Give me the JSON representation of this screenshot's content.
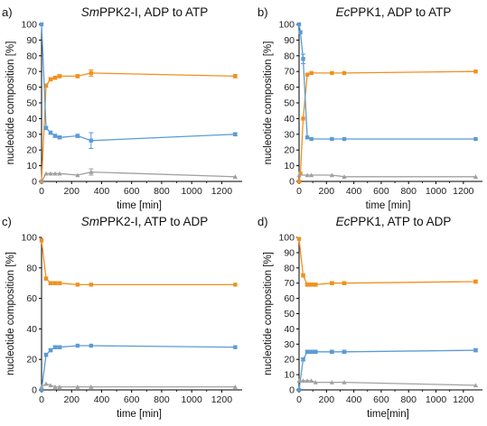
{
  "colors": {
    "orange": "#f0901e",
    "blue": "#5b9bd5",
    "gray": "#a0a0a0",
    "axis": "#000000"
  },
  "chart_data": [
    {
      "panel": "a)",
      "title_prefix": "",
      "title_italic": "Sm",
      "title_rest": "PPK2-I, ADP to ATP",
      "type": "line",
      "xlabel": "time [min]",
      "ylabel": "nucleotide composition [%]",
      "xlim": [
        0,
        1300
      ],
      "ylim": [
        0,
        100
      ],
      "xticks": [
        0,
        200,
        400,
        600,
        800,
        1000,
        1200
      ],
      "yticks": [
        0,
        10,
        20,
        30,
        40,
        50,
        60,
        70,
        80,
        90,
        100
      ],
      "series": [
        {
          "color": "orange",
          "x": [
            0,
            30,
            60,
            90,
            120,
            240,
            330,
            1290
          ],
          "y": [
            0,
            61,
            65,
            66,
            67,
            67,
            69,
            67
          ],
          "err": [
            0,
            1,
            1,
            1,
            1,
            1,
            2,
            1
          ]
        },
        {
          "color": "blue",
          "x": [
            0,
            30,
            60,
            90,
            120,
            240,
            330,
            1290
          ],
          "y": [
            100,
            34,
            31,
            29,
            28,
            29,
            26,
            30
          ],
          "err": [
            0,
            1,
            1,
            1,
            1,
            1,
            5,
            1
          ]
        },
        {
          "color": "gray",
          "x": [
            0,
            30,
            60,
            90,
            120,
            240,
            330,
            1290
          ],
          "y": [
            0,
            5,
            5,
            5,
            5,
            4,
            6,
            3
          ],
          "err": [
            0,
            0,
            0,
            0,
            0,
            0,
            2,
            0
          ]
        }
      ]
    },
    {
      "panel": "b)",
      "title_prefix": "",
      "title_italic": "Ec",
      "title_rest": "PPK1, ADP to ATP",
      "type": "line",
      "xlabel": "time [min]",
      "ylabel": "nucleotide composition [%]",
      "xlim": [
        0,
        1300
      ],
      "ylim": [
        0,
        100
      ],
      "xticks": [
        0,
        200,
        400,
        600,
        800,
        1000,
        1200
      ],
      "yticks": [
        0,
        10,
        20,
        30,
        40,
        50,
        60,
        70,
        80,
        90,
        100
      ],
      "series": [
        {
          "color": "orange",
          "x": [
            0,
            10,
            30,
            60,
            90,
            240,
            330,
            1290
          ],
          "y": [
            0,
            5,
            40,
            68,
            69,
            69,
            69,
            70
          ],
          "err": [
            0,
            0,
            0,
            0,
            0,
            0,
            0,
            0
          ]
        },
        {
          "color": "blue",
          "x": [
            0,
            10,
            30,
            60,
            90,
            240,
            330,
            1290
          ],
          "y": [
            100,
            95,
            78,
            28,
            27,
            27,
            27,
            27
          ],
          "err": [
            0,
            0,
            3,
            0,
            0,
            0,
            0,
            0
          ]
        },
        {
          "color": "gray",
          "x": [
            0,
            60,
            90,
            240,
            330,
            1290
          ],
          "y": [
            4,
            4,
            4,
            4,
            3,
            3
          ],
          "err": [
            0,
            0,
            0,
            0,
            0,
            0
          ]
        }
      ]
    },
    {
      "panel": "c)",
      "title_prefix": "",
      "title_italic": "Sm",
      "title_rest": "PPK2-I, ATP to ADP",
      "type": "line",
      "xlabel": "time [min]",
      "ylabel": "nucleotide composition [%]",
      "xlim": [
        0,
        1300
      ],
      "ylim": [
        0,
        100
      ],
      "xticks": [
        0,
        200,
        400,
        600,
        800,
        1000,
        1200
      ],
      "yticks": [
        0,
        20,
        40,
        60,
        80,
        100
      ],
      "series": [
        {
          "color": "orange",
          "x": [
            0,
            30,
            60,
            90,
            120,
            240,
            330,
            1290
          ],
          "y": [
            98,
            73,
            70,
            70,
            70,
            69,
            69,
            69
          ],
          "err": [
            0,
            1,
            1,
            1,
            1,
            0,
            0,
            0
          ]
        },
        {
          "color": "blue",
          "x": [
            0,
            30,
            60,
            90,
            120,
            240,
            330,
            1290
          ],
          "y": [
            0,
            23,
            26,
            28,
            28,
            29,
            29,
            28
          ],
          "err": [
            0,
            1,
            1,
            1,
            1,
            0,
            0,
            0
          ]
        },
        {
          "color": "gray",
          "x": [
            0,
            30,
            60,
            90,
            120,
            240,
            330,
            1290
          ],
          "y": [
            2,
            4,
            3,
            2,
            2,
            2,
            2,
            2
          ],
          "err": [
            0,
            0,
            0,
            0,
            0,
            0,
            0,
            0
          ]
        }
      ]
    },
    {
      "panel": "d)",
      "title_prefix": "",
      "title_italic": "Ec",
      "title_rest": "PPK1, ATP to ADP",
      "type": "line",
      "xlabel": "time[min]",
      "ylabel": "nucleotide composition [%]",
      "xlim": [
        0,
        1300
      ],
      "ylim": [
        0,
        100
      ],
      "xticks": [
        0,
        200,
        400,
        600,
        800,
        1000,
        1200
      ],
      "yticks": [
        0,
        10,
        20,
        30,
        40,
        50,
        60,
        70,
        80,
        90,
        100
      ],
      "series": [
        {
          "color": "orange",
          "x": [
            0,
            30,
            60,
            90,
            120,
            240,
            330,
            1290
          ],
          "y": [
            99,
            75,
            69,
            69,
            69,
            70,
            70,
            71
          ],
          "err": [
            0,
            1,
            1,
            1,
            1,
            1,
            1,
            1
          ]
        },
        {
          "color": "blue",
          "x": [
            0,
            30,
            60,
            90,
            120,
            240,
            330,
            1290
          ],
          "y": [
            0,
            20,
            25,
            25,
            25,
            25,
            25,
            26
          ],
          "err": [
            0,
            1,
            1,
            1,
            1,
            1,
            1,
            1
          ]
        },
        {
          "color": "gray",
          "x": [
            0,
            30,
            60,
            90,
            120,
            240,
            330,
            1290
          ],
          "y": [
            6,
            6,
            6,
            6,
            5,
            5,
            5,
            3
          ],
          "err": [
            0,
            0,
            0,
            0,
            0,
            0,
            0,
            0
          ]
        }
      ]
    }
  ]
}
